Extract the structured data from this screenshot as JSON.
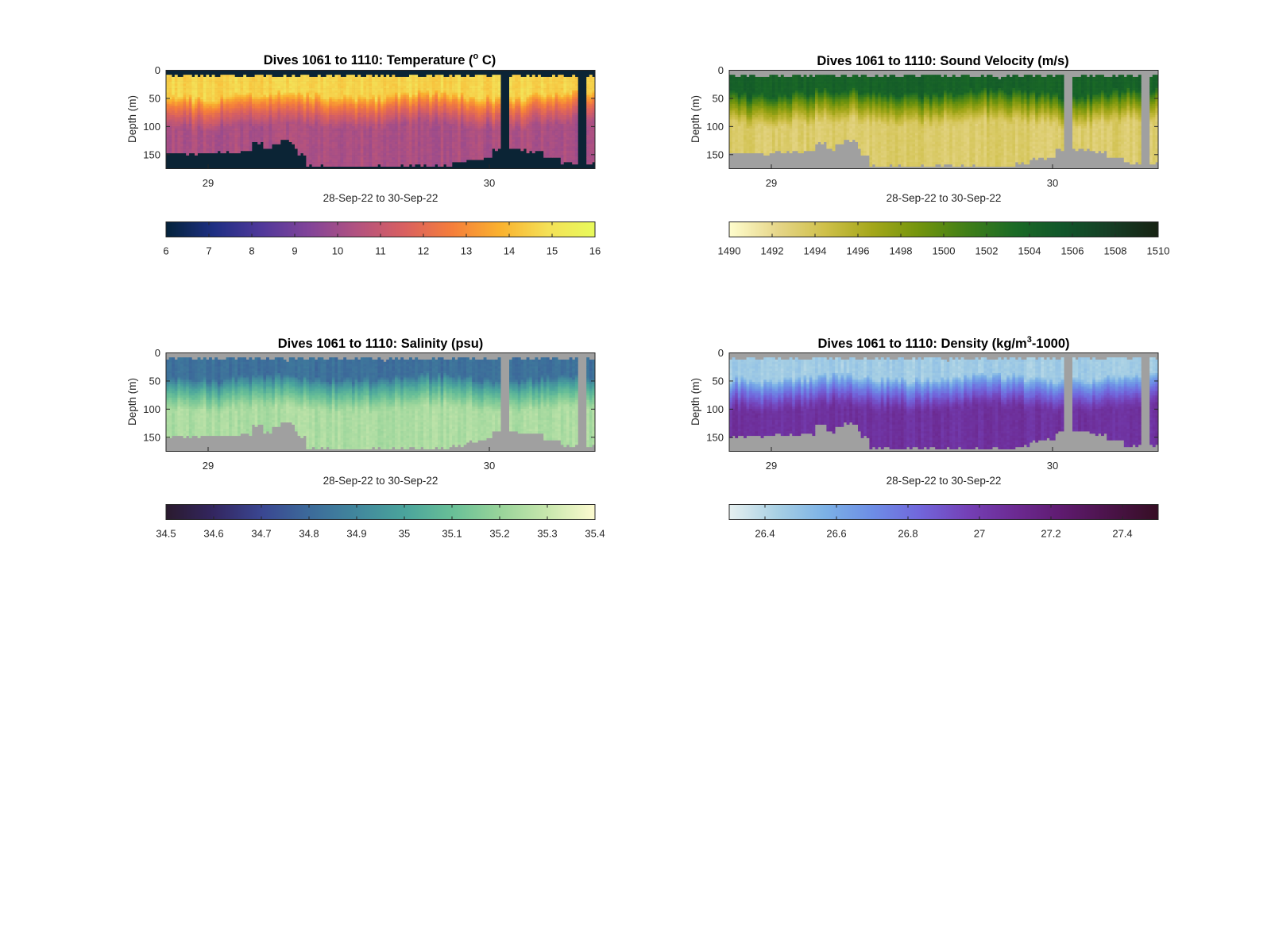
{
  "chart_data": [
    {
      "type": "heatmap",
      "title": "Dives 1061 to 1110: Temperature (",
      "title_superscript": "o",
      "title_tail": " C)",
      "xlabel": "28-Sep-22 to 30-Sep-22",
      "ylabel": "Depth (m)",
      "xticks": [
        "29",
        "30"
      ],
      "yticks": [
        0,
        50,
        100,
        150
      ],
      "ylim": [
        0,
        175
      ],
      "colormap": "thermal",
      "clim": [
        6,
        16
      ],
      "colorbar_ticks": [
        "6",
        "7",
        "8",
        "9",
        "10",
        "11",
        "12",
        "13",
        "14",
        "15",
        "16"
      ],
      "color_stops": [
        "#04233b",
        "#1e2f83",
        "#50389a",
        "#824499",
        "#b25280",
        "#d96060",
        "#f57e3b",
        "#fab12e",
        "#f4e057",
        "#e8fa5b"
      ],
      "missing_color": "#0b2435",
      "surface_value": 14.6,
      "bottom_value": 10.3,
      "mixed_layer_depth_m": 45
    },
    {
      "type": "heatmap",
      "title": "Dives 1061 to 1110: Sound Velocity (m/s)",
      "xlabel": "28-Sep-22 to 30-Sep-22",
      "ylabel": "Depth (m)",
      "xticks": [
        "29",
        "30"
      ],
      "yticks": [
        0,
        50,
        100,
        150
      ],
      "ylim": [
        0,
        175
      ],
      "colormap": "speed",
      "clim": [
        1490,
        1510
      ],
      "colorbar_ticks": [
        "1490",
        "1492",
        "1494",
        "1496",
        "1498",
        "1500",
        "1502",
        "1504",
        "1506",
        "1508",
        "1510"
      ],
      "color_stops": [
        "#fffdcd",
        "#e6d68a",
        "#cfc04a",
        "#a4a71a",
        "#72940d",
        "#3f7e18",
        "#1b6a26",
        "#11562a",
        "#163d25",
        "#172313"
      ],
      "missing_color": "#a0a0a0",
      "surface_value": 1504.3,
      "bottom_value": 1493.3,
      "mixed_layer_depth_m": 40
    },
    {
      "type": "heatmap",
      "title": "Dives 1061 to 1110: Salinity (psu)",
      "xlabel": "28-Sep-22 to 30-Sep-22",
      "ylabel": "Depth (m)",
      "xticks": [
        "29",
        "30"
      ],
      "yticks": [
        0,
        50,
        100,
        150
      ],
      "ylim": [
        0,
        175
      ],
      "colormap": "haline",
      "clim": [
        34.5,
        35.4
      ],
      "colorbar_ticks": [
        "34.5",
        "34.6",
        "34.7",
        "34.8",
        "34.9",
        "35",
        "35.1",
        "35.2",
        "35.3",
        "35.4"
      ],
      "color_stops": [
        "#2a1a2e",
        "#332660",
        "#3a4691",
        "#3c6a9a",
        "#41879d",
        "#4aa49c",
        "#68bf97",
        "#98d49a",
        "#c8e7ad",
        "#fdfbd0"
      ],
      "missing_color": "#a0a0a0",
      "surface_value": 34.82,
      "bottom_value": 35.24,
      "mixed_layer_depth_m": 45
    },
    {
      "type": "heatmap",
      "title": "Dives 1061 to 1110: Density (kg/m",
      "title_superscript": "3",
      "title_tail": "-1000)",
      "xlabel": "28-Sep-22 to 30-Sep-22",
      "ylabel": "Depth (m)",
      "xticks": [
        "29",
        "30"
      ],
      "yticks": [
        0,
        50,
        100,
        150
      ],
      "ylim": [
        0,
        175
      ],
      "colormap": "dense",
      "clim": [
        26.3,
        27.5
      ],
      "colorbar_ticks": [
        "26.4",
        "26.6",
        "26.8",
        "27",
        "27.2",
        "27.4"
      ],
      "color_stops": [
        "#e6f0f0",
        "#a8d0e4",
        "#7cb2e6",
        "#6d8ee6",
        "#7166dc",
        "#7440b6",
        "#6c2a92",
        "#5e1a6e",
        "#4a1348",
        "#360e24"
      ],
      "missing_color": "#a0a0a0",
      "surface_value": 26.45,
      "bottom_value": 27.05,
      "mixed_layer_depth_m": 45
    }
  ]
}
